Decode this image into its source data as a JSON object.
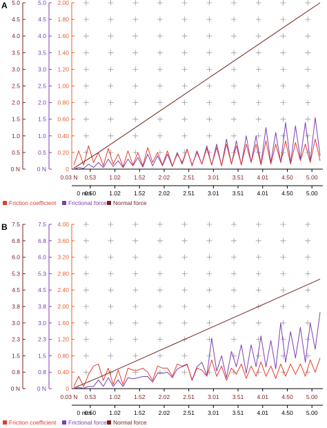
{
  "colors": {
    "friction": "#e53a2c",
    "force": "#7b3fb0",
    "normal": "#7a1f1f",
    "left_axis": "#7a1f1f",
    "mid_axis": "#7b3fb0",
    "coef_axis": "#e5602c",
    "bottom_axis": "#000000"
  },
  "chart_data": [
    {
      "type": "line",
      "panel_label": "A",
      "x_label_top": "0.03 N",
      "x_label_bottom": "0 mm",
      "x_ticks": [
        "0.50",
        "1.02",
        "1.52",
        "2.02",
        "2.51",
        "3.01",
        "3.51",
        "4.01",
        "4.50",
        "5.00"
      ],
      "x_ticks_top": [
        "0.53",
        "1.02",
        "1.52",
        "2.02",
        "2.51",
        "3.01",
        "3.51",
        "4.01",
        "4.50",
        "5.00"
      ],
      "xlim": [
        0,
        5.0
      ],
      "y_normal_ticks": [
        "0 N",
        "0.5",
        "1.0",
        "1.5",
        "2.0",
        "2.5",
        "3.0",
        "3.5",
        "4.0",
        "4.5",
        "5.0"
      ],
      "y_force_ticks": [
        "0 N",
        "0.5",
        "1.0",
        "1.5",
        "2.0",
        "2.5",
        "3.0",
        "3.5",
        "4.0",
        "4.5",
        "5.0"
      ],
      "y_coef_ticks": [
        "0",
        "0.20",
        "0.40",
        "0.60",
        "0.80",
        "1.00",
        "1.20",
        "1.40",
        "1.60",
        "1.80",
        "2.00"
      ],
      "ylim_normal": [
        0,
        5.0
      ],
      "ylim_coef": [
        0,
        2.0
      ],
      "legend": [
        "Friction coefficient",
        "Frictional force",
        "Normal force"
      ],
      "series": [
        {
          "name": "Normal force",
          "axis": "normal",
          "x": [
            0,
            0.5,
            1.0,
            1.5,
            2.0,
            2.5,
            3.0,
            3.5,
            4.0,
            4.5,
            5.0
          ],
          "values": [
            0.03,
            0.5,
            1.0,
            1.5,
            2.0,
            2.5,
            3.0,
            3.5,
            4.0,
            4.5,
            5.0
          ]
        },
        {
          "name": "Friction coefficient",
          "axis": "coef",
          "x": [
            0,
            0.1,
            0.2,
            0.3,
            0.4,
            0.5,
            0.6,
            0.7,
            0.8,
            0.9,
            1.0,
            1.1,
            1.2,
            1.3,
            1.4,
            1.5,
            1.6,
            1.7,
            1.8,
            1.9,
            2.0,
            2.1,
            2.2,
            2.3,
            2.4,
            2.5,
            2.6,
            2.7,
            2.8,
            2.9,
            3.0,
            3.1,
            3.2,
            3.3,
            3.4,
            3.5,
            3.6,
            3.7,
            3.8,
            3.9,
            4.0,
            4.1,
            4.2,
            4.3,
            4.4,
            4.5,
            4.6,
            4.7,
            4.8,
            4.9,
            5.0
          ],
          "values": [
            0.05,
            0.22,
            0.05,
            0.28,
            0.08,
            0.2,
            0.04,
            0.25,
            0.06,
            0.18,
            0.03,
            0.22,
            0.05,
            0.2,
            0.04,
            0.26,
            0.08,
            0.2,
            0.05,
            0.22,
            0.04,
            0.18,
            0.08,
            0.24,
            0.05,
            0.2,
            0.06,
            0.25,
            0.05,
            0.26,
            0.04,
            0.3,
            0.06,
            0.28,
            0.05,
            0.3,
            0.08,
            0.3,
            0.05,
            0.34,
            0.06,
            0.3,
            0.08,
            0.34,
            0.06,
            0.32,
            0.1,
            0.3,
            0.08,
            0.36,
            0.1
          ]
        },
        {
          "name": "Frictional force",
          "axis": "normal",
          "x": [
            0,
            0.1,
            0.2,
            0.3,
            0.4,
            0.5,
            0.6,
            0.7,
            0.8,
            0.9,
            1.0,
            1.1,
            1.2,
            1.3,
            1.4,
            1.5,
            1.6,
            1.7,
            1.8,
            1.9,
            2.0,
            2.1,
            2.2,
            2.3,
            2.4,
            2.5,
            2.6,
            2.7,
            2.8,
            2.9,
            3.0,
            3.1,
            3.2,
            3.3,
            3.4,
            3.5,
            3.6,
            3.7,
            3.8,
            3.9,
            4.0,
            4.1,
            4.2,
            4.3,
            4.4,
            4.5,
            4.6,
            4.7,
            4.8,
            4.9,
            5.0
          ],
          "values": [
            0.0,
            0.05,
            0.02,
            0.15,
            0.05,
            0.2,
            0.05,
            0.3,
            0.08,
            0.25,
            0.05,
            0.3,
            0.1,
            0.35,
            0.06,
            0.45,
            0.1,
            0.4,
            0.1,
            0.45,
            0.08,
            0.5,
            0.15,
            0.6,
            0.1,
            0.55,
            0.15,
            0.7,
            0.12,
            0.75,
            0.1,
            0.9,
            0.15,
            0.85,
            0.12,
            1.0,
            0.2,
            1.0,
            0.15,
            1.25,
            0.2,
            1.1,
            0.2,
            1.4,
            0.18,
            1.3,
            0.3,
            1.4,
            0.25,
            1.55,
            0.4
          ]
        }
      ]
    },
    {
      "type": "line",
      "panel_label": "B",
      "x_label_top": "0.03 N",
      "x_label_bottom": "0 mm",
      "x_ticks": [
        "0.50",
        "1.02",
        "1.52",
        "2.02",
        "2.51",
        "3.01",
        "3.51",
        "4.01",
        "4.50",
        "5.00"
      ],
      "x_ticks_top": [
        "0.53",
        "1.02",
        "1.52",
        "2.02",
        "2.51",
        "3.01",
        "3.51",
        "4.01",
        "4.50",
        "5.00"
      ],
      "xlim": [
        0,
        5.0
      ],
      "y_normal_ticks": [
        "0 N",
        "0.8",
        "1.5",
        "2.3",
        "3.0",
        "3.8",
        "4.5",
        "5.3",
        "6.0",
        "6.8",
        "7.5"
      ],
      "y_force_ticks": [
        "0 N",
        "0.8",
        "1.5",
        "2.3",
        "3.0",
        "3.8",
        "4.5",
        "5.3",
        "6.0",
        "6.8",
        "7.5"
      ],
      "y_coef_ticks": [
        "0",
        "0.40",
        "0.80",
        "1.20",
        "1.60",
        "2.00",
        "2.40",
        "2.80",
        "3.20",
        "3.60",
        "4.00"
      ],
      "ylim_normal": [
        0,
        7.5
      ],
      "ylim_coef": [
        0,
        4.0
      ],
      "legend": [
        "Friction coefficient",
        "Frictional force",
        "Normal force"
      ],
      "series": [
        {
          "name": "Normal force",
          "axis": "normal",
          "x": [
            0,
            0.5,
            1.0,
            1.5,
            2.0,
            2.5,
            3.0,
            3.5,
            4.0,
            4.5,
            5.0
          ],
          "values": [
            0.03,
            0.5,
            1.0,
            1.5,
            2.0,
            2.5,
            3.0,
            3.5,
            4.0,
            4.5,
            5.0
          ]
        },
        {
          "name": "Friction coefficient",
          "axis": "coef",
          "x": [
            0,
            0.1,
            0.2,
            0.3,
            0.4,
            0.5,
            0.6,
            0.7,
            0.8,
            0.9,
            1.0,
            1.1,
            1.2,
            1.3,
            1.4,
            1.5,
            1.6,
            1.7,
            1.8,
            1.9,
            2.0,
            2.1,
            2.2,
            2.3,
            2.4,
            2.5,
            2.6,
            2.7,
            2.8,
            2.9,
            3.0,
            3.1,
            3.2,
            3.3,
            3.4,
            3.5,
            3.6,
            3.7,
            3.8,
            3.9,
            4.0,
            4.1,
            4.2,
            4.3,
            4.4,
            4.5,
            4.6,
            4.7,
            4.8,
            4.9,
            5.0
          ],
          "values": [
            0.05,
            0.3,
            0.05,
            0.35,
            0.55,
            0.6,
            0.2,
            0.5,
            0.1,
            0.45,
            0.1,
            0.5,
            0.45,
            0.45,
            0.5,
            0.4,
            0.2,
            0.55,
            0.5,
            0.5,
            0.3,
            0.6,
            0.55,
            0.6,
            0.2,
            0.5,
            0.45,
            0.3,
            0.7,
            0.3,
            0.55,
            0.2,
            0.5,
            0.35,
            0.6,
            0.25,
            0.55,
            0.3,
            0.65,
            0.3,
            0.55,
            0.25,
            0.6,
            0.3,
            0.6,
            0.35,
            0.6,
            0.3,
            0.7,
            0.4,
            0.75
          ]
        },
        {
          "name": "Frictional force",
          "axis": "normal",
          "x": [
            0,
            0.1,
            0.2,
            0.3,
            0.4,
            0.5,
            0.6,
            0.7,
            0.8,
            0.9,
            1.0,
            1.1,
            1.2,
            1.3,
            1.4,
            1.5,
            1.6,
            1.7,
            1.8,
            1.9,
            2.0,
            2.1,
            2.2,
            2.3,
            2.4,
            2.5,
            2.6,
            2.7,
            2.8,
            2.9,
            3.0,
            3.1,
            3.2,
            3.3,
            3.4,
            3.5,
            3.6,
            3.7,
            3.8,
            3.9,
            4.0,
            4.1,
            4.2,
            4.3,
            4.4,
            4.5,
            4.6,
            4.7,
            4.8,
            4.9,
            5.0
          ],
          "values": [
            0.0,
            0.05,
            0.02,
            0.1,
            0.1,
            0.4,
            0.1,
            0.5,
            0.1,
            0.4,
            0.1,
            0.5,
            0.45,
            0.5,
            0.55,
            0.55,
            0.3,
            0.7,
            0.7,
            0.75,
            0.5,
            0.9,
            1.0,
            1.1,
            0.4,
            1.0,
            1.2,
            0.6,
            2.3,
            0.8,
            1.5,
            0.5,
            1.7,
            1.0,
            2.0,
            0.7,
            2.0,
            1.0,
            2.4,
            1.0,
            2.2,
            0.9,
            3.0,
            1.2,
            2.6,
            1.4,
            2.8,
            1.2,
            3.0,
            1.8,
            3.5
          ]
        }
      ]
    }
  ]
}
